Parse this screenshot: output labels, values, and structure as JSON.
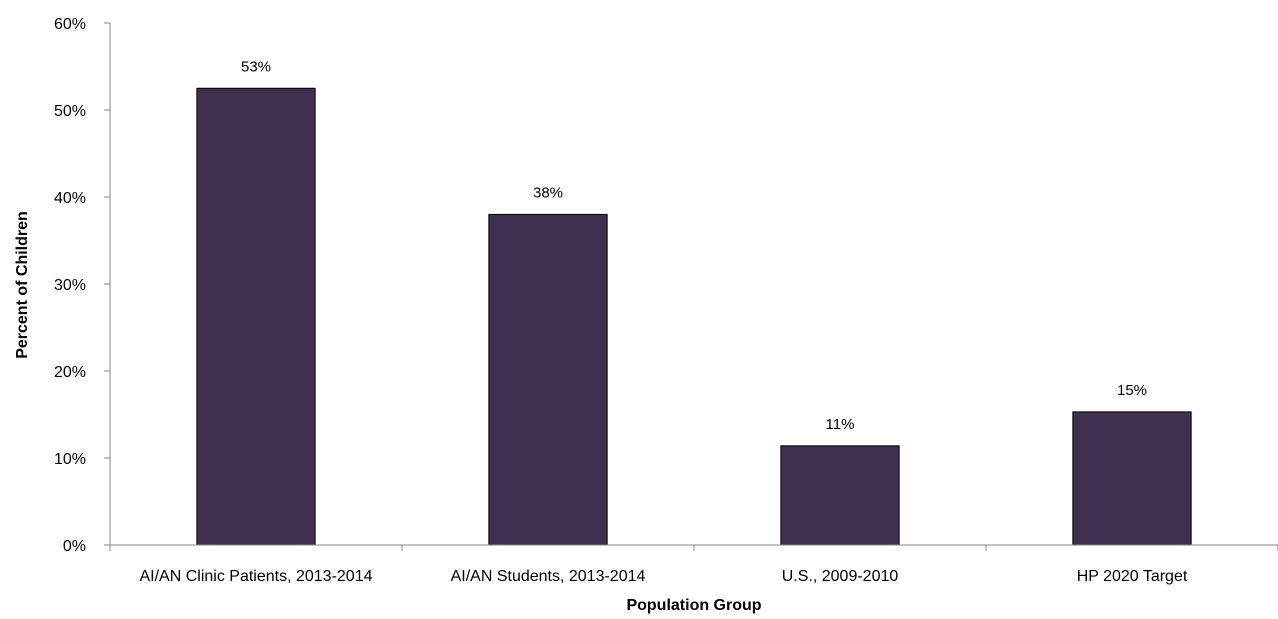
{
  "chart_data": {
    "type": "bar",
    "categories": [
      "AI/AN Clinic Patients, 2013-2014",
      "AI/AN Students, 2013-2014",
      "U.S., 2009-2010",
      "HP 2020 Target"
    ],
    "values": [
      52.5,
      38,
      11.4,
      15.3
    ],
    "data_labels": [
      "53%",
      "38%",
      "11%",
      "15%"
    ],
    "xlabel": "Population Group",
    "ylabel": "Percent of Children",
    "ylim": [
      0,
      60
    ],
    "yticks": [
      0,
      10,
      20,
      30,
      40,
      50,
      60
    ],
    "ytick_labels": [
      "0%",
      "10%",
      "20%",
      "30%",
      "40%",
      "50%",
      "60%"
    ],
    "grid": false,
    "legend": "none",
    "bar_color": "#3f3050"
  }
}
